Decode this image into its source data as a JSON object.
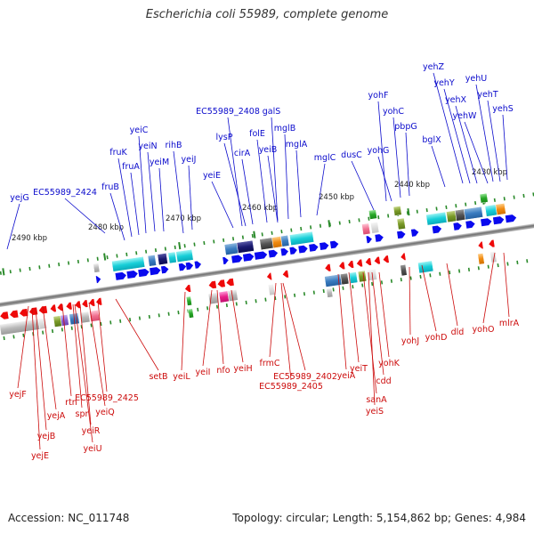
{
  "title": "Escherichia coli 55989, complete genome",
  "footer": {
    "accession": "Accession: NC_011748",
    "topology": "Topology: circular; Length: 5,154,862 bp; Genes: 4,984"
  },
  "colors": {
    "forward_label": "#0b0bcc",
    "reverse_label": "#cc0b0b",
    "forward_gene": "#0a0aee",
    "reverse_gene": "#ee0a0a",
    "backbone": "#888888",
    "tick": "#2a8a2a"
  },
  "scale_labels": [
    "2490 kbp",
    "2480 kbp",
    "2470 kbp",
    "2460 kbp",
    "2450 kbp",
    "2440 kbp",
    "2430 kbp"
  ],
  "forward_genes": [
    "yejG",
    "EC55989_2424",
    "fruB",
    "fruK",
    "fruA",
    "yeiC",
    "yeiN",
    "yeiM",
    "rihB",
    "yeiJ",
    "yeiE",
    "EC55989_2408",
    "lysP",
    "cirA",
    "folE",
    "galS",
    "yeiB",
    "mglB",
    "mglA",
    "mglC",
    "dusC",
    "yohF",
    "yohG",
    "yohC",
    "pbpG",
    "bglX",
    "yehZ",
    "yehY",
    "yehX",
    "yehW",
    "yehU",
    "yehT",
    "yehS"
  ],
  "reverse_genes": [
    "yejF",
    "yejB",
    "yejE",
    "yejA",
    "rtn",
    "spr",
    "yeiR",
    "yeiU",
    "EC55989_2425",
    "yeiQ",
    "setB",
    "yeiL",
    "yeiI",
    "nfo",
    "yeiH",
    "frmC",
    "EC55989_2402",
    "EC55989_2405",
    "yeiA",
    "yeiT",
    "sanA",
    "yeiS",
    "cdd",
    "yohK",
    "yohJ",
    "yohD",
    "dld",
    "yohO",
    "mlrA"
  ]
}
